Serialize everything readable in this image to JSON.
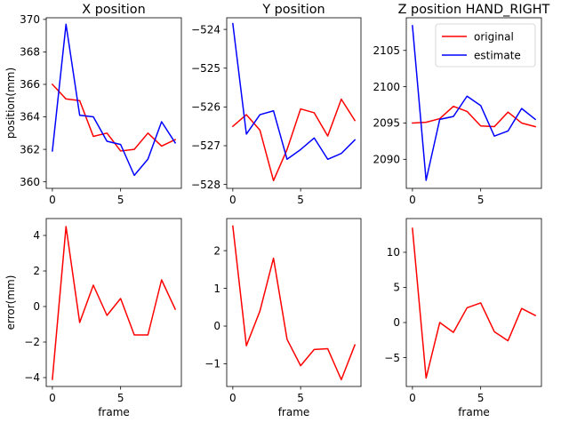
{
  "chart_data": [
    {
      "type": "line",
      "title": "X position",
      "ylabel": "position(mm)",
      "xlabel": "",
      "xlim": [
        -0.45,
        9.45
      ],
      "ylim": [
        359.6,
        370.1
      ],
      "xticks": [
        0,
        5
      ],
      "yticks": [
        360,
        362,
        364,
        366,
        368,
        370
      ],
      "x": [
        0,
        1,
        2,
        3,
        4,
        5,
        6,
        7,
        8,
        9
      ],
      "series": [
        {
          "name": "original",
          "color": "#ff0000",
          "values": [
            366.0,
            365.1,
            365.0,
            362.8,
            363.0,
            361.9,
            362.0,
            363.0,
            362.2,
            362.6
          ]
        },
        {
          "name": "estimate",
          "color": "#0000ff",
          "values": [
            361.9,
            369.7,
            364.1,
            364.0,
            362.5,
            362.3,
            360.4,
            361.4,
            363.7,
            362.4
          ]
        }
      ]
    },
    {
      "type": "line",
      "title": "Y position",
      "ylabel": "",
      "xlabel": "",
      "xlim": [
        -0.45,
        9.45
      ],
      "ylim": [
        -528.1,
        -523.7
      ],
      "xticks": [
        0,
        5
      ],
      "yticks": [
        -528,
        -527,
        -526,
        -525,
        -524
      ],
      "x": [
        0,
        1,
        2,
        3,
        4,
        5,
        6,
        7,
        8,
        9
      ],
      "series": [
        {
          "name": "original",
          "color": "#ff0000",
          "values": [
            -526.5,
            -526.2,
            -526.6,
            -527.9,
            -527.1,
            -526.05,
            -526.15,
            -526.75,
            -525.8,
            -526.35
          ]
        },
        {
          "name": "estimate",
          "color": "#0000ff",
          "values": [
            -523.85,
            -526.7,
            -526.2,
            -526.1,
            -527.35,
            -527.1,
            -526.8,
            -527.35,
            -527.2,
            -526.85
          ]
        }
      ]
    },
    {
      "type": "line",
      "title": "Z position HAND_RIGHT",
      "ylabel": "",
      "xlabel": "",
      "xlim": [
        -0.45,
        9.45
      ],
      "ylim": [
        2086.0,
        2109.5
      ],
      "xticks": [
        0,
        5
      ],
      "yticks": [
        2090,
        2095,
        2100,
        2105
      ],
      "x": [
        0,
        1,
        2,
        3,
        4,
        5,
        6,
        7,
        8,
        9
      ],
      "legend": {
        "placement": "top-right",
        "entries": [
          "original",
          "estimate"
        ]
      },
      "series": [
        {
          "name": "original",
          "color": "#ff0000",
          "values": [
            2095.0,
            2095.1,
            2095.6,
            2097.3,
            2096.6,
            2094.6,
            2094.5,
            2096.5,
            2095.0,
            2094.5
          ]
        },
        {
          "name": "estimate",
          "color": "#0000ff",
          "values": [
            2108.4,
            2087.1,
            2095.5,
            2095.9,
            2098.7,
            2097.4,
            2093.2,
            2093.9,
            2097.0,
            2095.5
          ]
        }
      ]
    },
    {
      "type": "line",
      "title": "",
      "ylabel": "error(mm)",
      "xlabel": "frame",
      "xlim": [
        -0.45,
        9.45
      ],
      "ylim": [
        -4.5,
        4.95
      ],
      "xticks": [
        0,
        5
      ],
      "yticks": [
        -4,
        -2,
        0,
        2,
        4
      ],
      "x": [
        0,
        1,
        2,
        3,
        4,
        5,
        6,
        7,
        8,
        9
      ],
      "series": [
        {
          "color": "#ff0000",
          "values": [
            -4.1,
            4.5,
            -0.9,
            1.2,
            -0.5,
            0.45,
            -1.6,
            -1.6,
            1.5,
            -0.15
          ]
        }
      ]
    },
    {
      "type": "line",
      "title": "",
      "ylabel": "",
      "xlabel": "frame",
      "xlim": [
        -0.45,
        9.45
      ],
      "ylim": [
        -1.6,
        2.85
      ],
      "xticks": [
        0,
        5
      ],
      "yticks": [
        -1,
        0,
        1,
        2
      ],
      "x": [
        0,
        1,
        2,
        3,
        4,
        5,
        6,
        7,
        8,
        9
      ],
      "series": [
        {
          "color": "#ff0000",
          "values": [
            2.65,
            -0.52,
            0.4,
            1.8,
            -0.35,
            -1.05,
            -0.62,
            -0.6,
            -1.42,
            -0.5
          ]
        }
      ]
    },
    {
      "type": "line",
      "title": "",
      "ylabel": "",
      "xlabel": "frame",
      "xlim": [
        -0.45,
        9.45
      ],
      "ylim": [
        -9.1,
        14.8
      ],
      "xticks": [
        0,
        5
      ],
      "yticks": [
        -5,
        0,
        5,
        10
      ],
      "x": [
        0,
        1,
        2,
        3,
        4,
        5,
        6,
        7,
        8,
        9
      ],
      "series": [
        {
          "color": "#ff0000",
          "values": [
            13.4,
            -7.9,
            0.0,
            -1.4,
            2.1,
            2.8,
            -1.3,
            -2.6,
            2.0,
            1.0
          ]
        }
      ]
    }
  ]
}
